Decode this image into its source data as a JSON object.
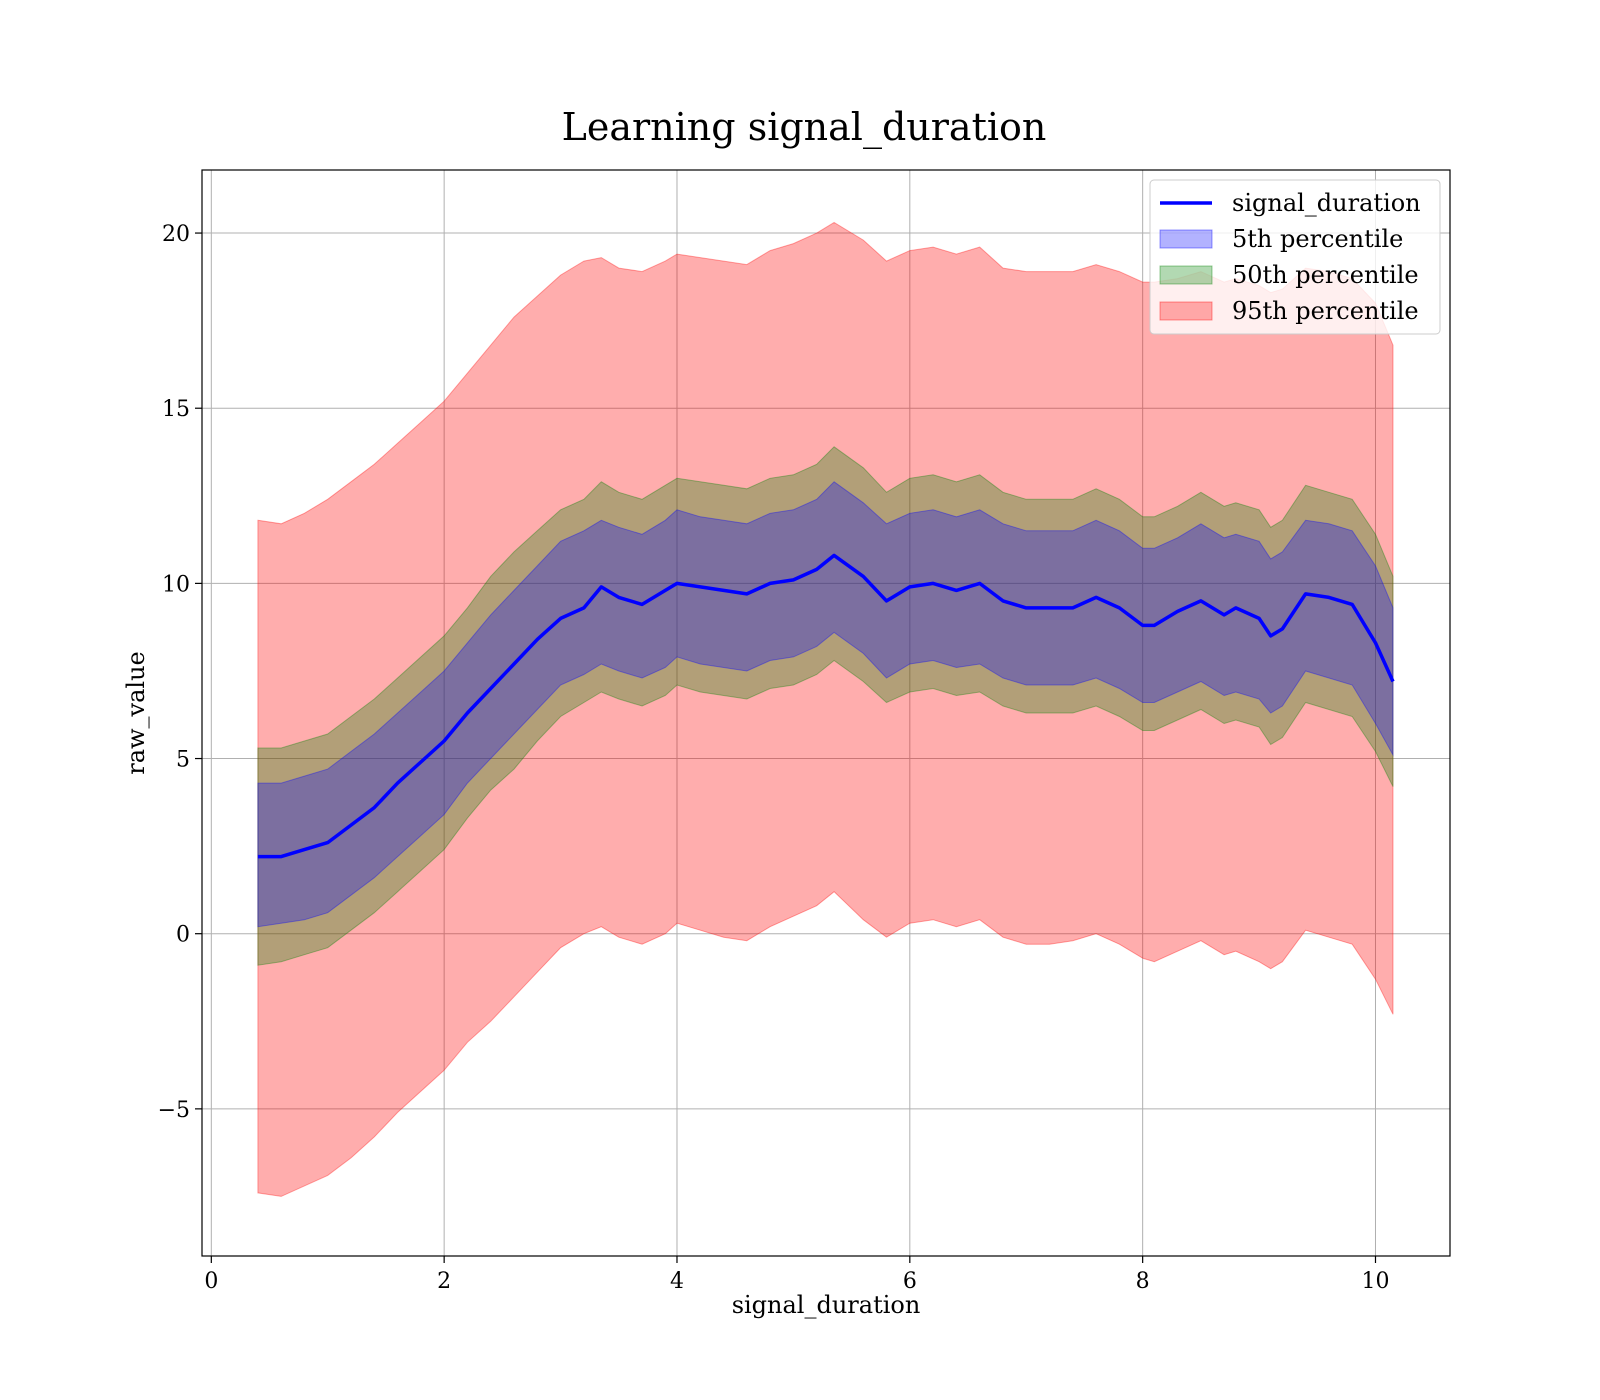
{
  "chart_data": {
    "type": "area",
    "title": "Learning signal_duration",
    "xlabel": "signal_duration",
    "ylabel": "raw_value",
    "xlim": [
      -0.08,
      10.64
    ],
    "ylim": [
      -9.2,
      21.8
    ],
    "xticks": [
      0,
      2,
      4,
      6,
      8,
      10
    ],
    "yticks": [
      -5,
      0,
      5,
      10,
      15,
      20
    ],
    "xtick_labels": [
      "0",
      "2",
      "4",
      "6",
      "8",
      "10"
    ],
    "ytick_labels": [
      "−5",
      "0",
      "5",
      "10",
      "15",
      "20"
    ],
    "grid": true,
    "legend_position": "top-right",
    "x": [
      0.4,
      0.6,
      0.8,
      1.0,
      1.2,
      1.4,
      1.6,
      1.8,
      2.0,
      2.2,
      2.4,
      2.6,
      2.8,
      3.0,
      3.2,
      3.35,
      3.5,
      3.7,
      3.9,
      4.0,
      4.2,
      4.4,
      4.6,
      4.8,
      5.0,
      5.2,
      5.35,
      5.6,
      5.8,
      6.0,
      6.2,
      6.4,
      6.6,
      6.8,
      7.0,
      7.2,
      7.4,
      7.6,
      7.8,
      8.0,
      8.1,
      8.3,
      8.5,
      8.7,
      8.8,
      9.0,
      9.1,
      9.2,
      9.4,
      9.6,
      9.8,
      10.0,
      10.15
    ],
    "series": [
      {
        "name": "signal_duration",
        "style": "line",
        "color": "#0000ff",
        "values": [
          2.2,
          2.2,
          2.4,
          2.6,
          3.1,
          3.6,
          4.3,
          4.9,
          5.5,
          6.3,
          7.0,
          7.7,
          8.4,
          9.0,
          9.3,
          9.9,
          9.6,
          9.4,
          9.8,
          10.0,
          9.9,
          9.8,
          9.7,
          10.0,
          10.1,
          10.4,
          10.8,
          10.2,
          9.5,
          9.9,
          10.0,
          9.8,
          10.0,
          9.5,
          9.3,
          9.3,
          9.3,
          9.6,
          9.3,
          8.8,
          8.8,
          9.2,
          9.5,
          9.1,
          9.3,
          9.0,
          8.5,
          8.7,
          9.7,
          9.6,
          9.4,
          8.3,
          7.2
        ]
      },
      {
        "name": "5th percentile",
        "style": "band",
        "color": "#0000ff",
        "alpha": 0.3,
        "lower": [
          0.2,
          0.3,
          0.4,
          0.6,
          1.1,
          1.6,
          2.2,
          2.8,
          3.4,
          4.3,
          5.0,
          5.7,
          6.4,
          7.1,
          7.4,
          7.7,
          7.5,
          7.3,
          7.6,
          7.9,
          7.7,
          7.6,
          7.5,
          7.8,
          7.9,
          8.2,
          8.6,
          8.0,
          7.3,
          7.7,
          7.8,
          7.6,
          7.7,
          7.3,
          7.1,
          7.1,
          7.1,
          7.3,
          7.0,
          6.6,
          6.6,
          6.9,
          7.2,
          6.8,
          6.9,
          6.7,
          6.3,
          6.5,
          7.5,
          7.3,
          7.1,
          6.0,
          5.1
        ],
        "upper": [
          4.3,
          4.3,
          4.5,
          4.7,
          5.2,
          5.7,
          6.3,
          6.9,
          7.5,
          8.3,
          9.1,
          9.8,
          10.5,
          11.2,
          11.5,
          11.8,
          11.6,
          11.4,
          11.8,
          12.1,
          11.9,
          11.8,
          11.7,
          12.0,
          12.1,
          12.4,
          12.9,
          12.3,
          11.7,
          12.0,
          12.1,
          11.9,
          12.1,
          11.7,
          11.5,
          11.5,
          11.5,
          11.8,
          11.5,
          11.0,
          11.0,
          11.3,
          11.7,
          11.3,
          11.4,
          11.2,
          10.7,
          10.9,
          11.8,
          11.7,
          11.5,
          10.5,
          9.3
        ]
      },
      {
        "name": "50th percentile",
        "style": "band",
        "color": "#008000",
        "alpha": 0.3,
        "lower": [
          -0.9,
          -0.8,
          -0.6,
          -0.4,
          0.1,
          0.6,
          1.2,
          1.8,
          2.4,
          3.3,
          4.1,
          4.7,
          5.5,
          6.2,
          6.6,
          6.9,
          6.7,
          6.5,
          6.8,
          7.1,
          6.9,
          6.8,
          6.7,
          7.0,
          7.1,
          7.4,
          7.8,
          7.2,
          6.6,
          6.9,
          7.0,
          6.8,
          6.9,
          6.5,
          6.3,
          6.3,
          6.3,
          6.5,
          6.2,
          5.8,
          5.8,
          6.1,
          6.4,
          6.0,
          6.1,
          5.9,
          5.4,
          5.6,
          6.6,
          6.4,
          6.2,
          5.2,
          4.2
        ],
        "upper": [
          5.3,
          5.3,
          5.5,
          5.7,
          6.2,
          6.7,
          7.3,
          7.9,
          8.5,
          9.3,
          10.2,
          10.9,
          11.5,
          12.1,
          12.4,
          12.9,
          12.6,
          12.4,
          12.8,
          13.0,
          12.9,
          12.8,
          12.7,
          13.0,
          13.1,
          13.4,
          13.9,
          13.3,
          12.6,
          13.0,
          13.1,
          12.9,
          13.1,
          12.6,
          12.4,
          12.4,
          12.4,
          12.7,
          12.4,
          11.9,
          11.9,
          12.2,
          12.6,
          12.2,
          12.3,
          12.1,
          11.6,
          11.8,
          12.8,
          12.6,
          12.4,
          11.4,
          10.2
        ]
      },
      {
        "name": "95th percentile",
        "style": "band",
        "color": "#ff0000",
        "alpha": 0.32,
        "lower": [
          -7.4,
          -7.5,
          -7.2,
          -6.9,
          -6.4,
          -5.8,
          -5.1,
          -4.5,
          -3.9,
          -3.1,
          -2.5,
          -1.8,
          -1.1,
          -0.4,
          0.0,
          0.2,
          -0.1,
          -0.3,
          0.0,
          0.3,
          0.1,
          -0.1,
          -0.2,
          0.2,
          0.5,
          0.8,
          1.2,
          0.4,
          -0.1,
          0.3,
          0.4,
          0.2,
          0.4,
          -0.1,
          -0.3,
          -0.3,
          -0.2,
          0.0,
          -0.3,
          -0.7,
          -0.8,
          -0.5,
          -0.2,
          -0.6,
          -0.5,
          -0.8,
          -1.0,
          -0.8,
          0.1,
          -0.1,
          -0.3,
          -1.3,
          -2.3
        ],
        "upper": [
          11.8,
          11.7,
          12.0,
          12.4,
          12.9,
          13.4,
          14.0,
          14.6,
          15.2,
          16.0,
          16.8,
          17.6,
          18.2,
          18.8,
          19.2,
          19.3,
          19.0,
          18.9,
          19.2,
          19.4,
          19.3,
          19.2,
          19.1,
          19.5,
          19.7,
          20.0,
          20.3,
          19.8,
          19.2,
          19.5,
          19.6,
          19.4,
          19.6,
          19.0,
          18.9,
          18.9,
          18.9,
          19.1,
          18.9,
          18.6,
          18.6,
          18.7,
          18.9,
          18.6,
          18.7,
          18.5,
          18.3,
          18.4,
          19.0,
          18.9,
          18.7,
          18.0,
          16.8
        ]
      }
    ],
    "legend": [
      {
        "label": "signal_duration",
        "kind": "line",
        "color": "#0000ff"
      },
      {
        "label": "5th percentile",
        "kind": "patch",
        "color": "#0000ff"
      },
      {
        "label": "50th percentile",
        "kind": "patch",
        "color": "#008000"
      },
      {
        "label": "95th percentile",
        "kind": "patch",
        "color": "#ff0000"
      }
    ]
  }
}
